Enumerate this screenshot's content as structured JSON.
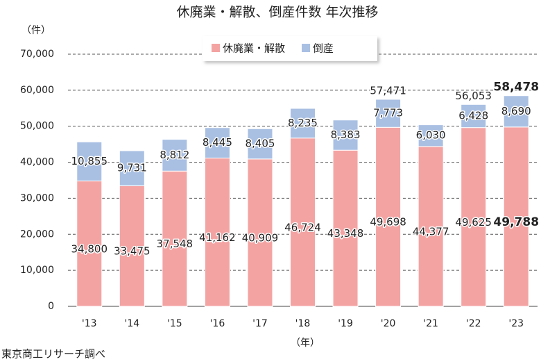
{
  "chart_data": {
    "type": "stacked-bar",
    "title": "休廃業・解散、倒産件数 年次推移",
    "y_label": "（件）",
    "x_label": "（年）",
    "source": "東京商工リサーチ調べ",
    "categories": [
      "'13",
      "'14",
      "'15",
      "'16",
      "'17",
      "'18",
      "'19",
      "'20",
      "'21",
      "'22",
      "'23"
    ],
    "series": [
      {
        "name": "休廃業・解散",
        "color": "#f4a3a3",
        "values": [
          34800,
          33475,
          37548,
          41162,
          40909,
          46724,
          43348,
          49698,
          44377,
          49625,
          49788
        ],
        "value_labels": [
          "34,800",
          "33,475",
          "37,548",
          "41,162",
          "40,909",
          "46,724",
          "43,348",
          "49,698",
          "44,377",
          "49,625",
          "49,788"
        ]
      },
      {
        "name": "倒産",
        "color": "#a9c0e3",
        "values": [
          10855,
          9731,
          8812,
          8445,
          8405,
          8235,
          8383,
          7773,
          6030,
          6428,
          8690
        ],
        "value_labels": [
          "10,855",
          "9,731",
          "8,812",
          "8,445",
          "8,405",
          "8,235",
          "8,383",
          "7,773",
          "6,030",
          "6,428",
          "8,690"
        ]
      }
    ],
    "totals": {
      "values": [
        null,
        null,
        null,
        null,
        null,
        null,
        null,
        57471,
        null,
        56053,
        58478
      ],
      "value_labels": [
        null,
        null,
        null,
        null,
        null,
        null,
        null,
        "57,471",
        null,
        "56,053",
        "58,478"
      ]
    },
    "ylim": [
      0,
      70000
    ],
    "yticks": [
      0,
      {
        "value": 10000,
        "label": "10,000"
      },
      {
        "value": 20000,
        "label": "20,000"
      },
      {
        "value": 30000,
        "label": "30,000"
      },
      {
        "value": 40000,
        "label": "40,000"
      },
      {
        "value": 50000,
        "label": "50,000"
      },
      {
        "value": 60000,
        "label": "60,000"
      },
      {
        "value": 70000,
        "label": "70,000"
      }
    ],
    "grid": true,
    "legend": "top"
  }
}
